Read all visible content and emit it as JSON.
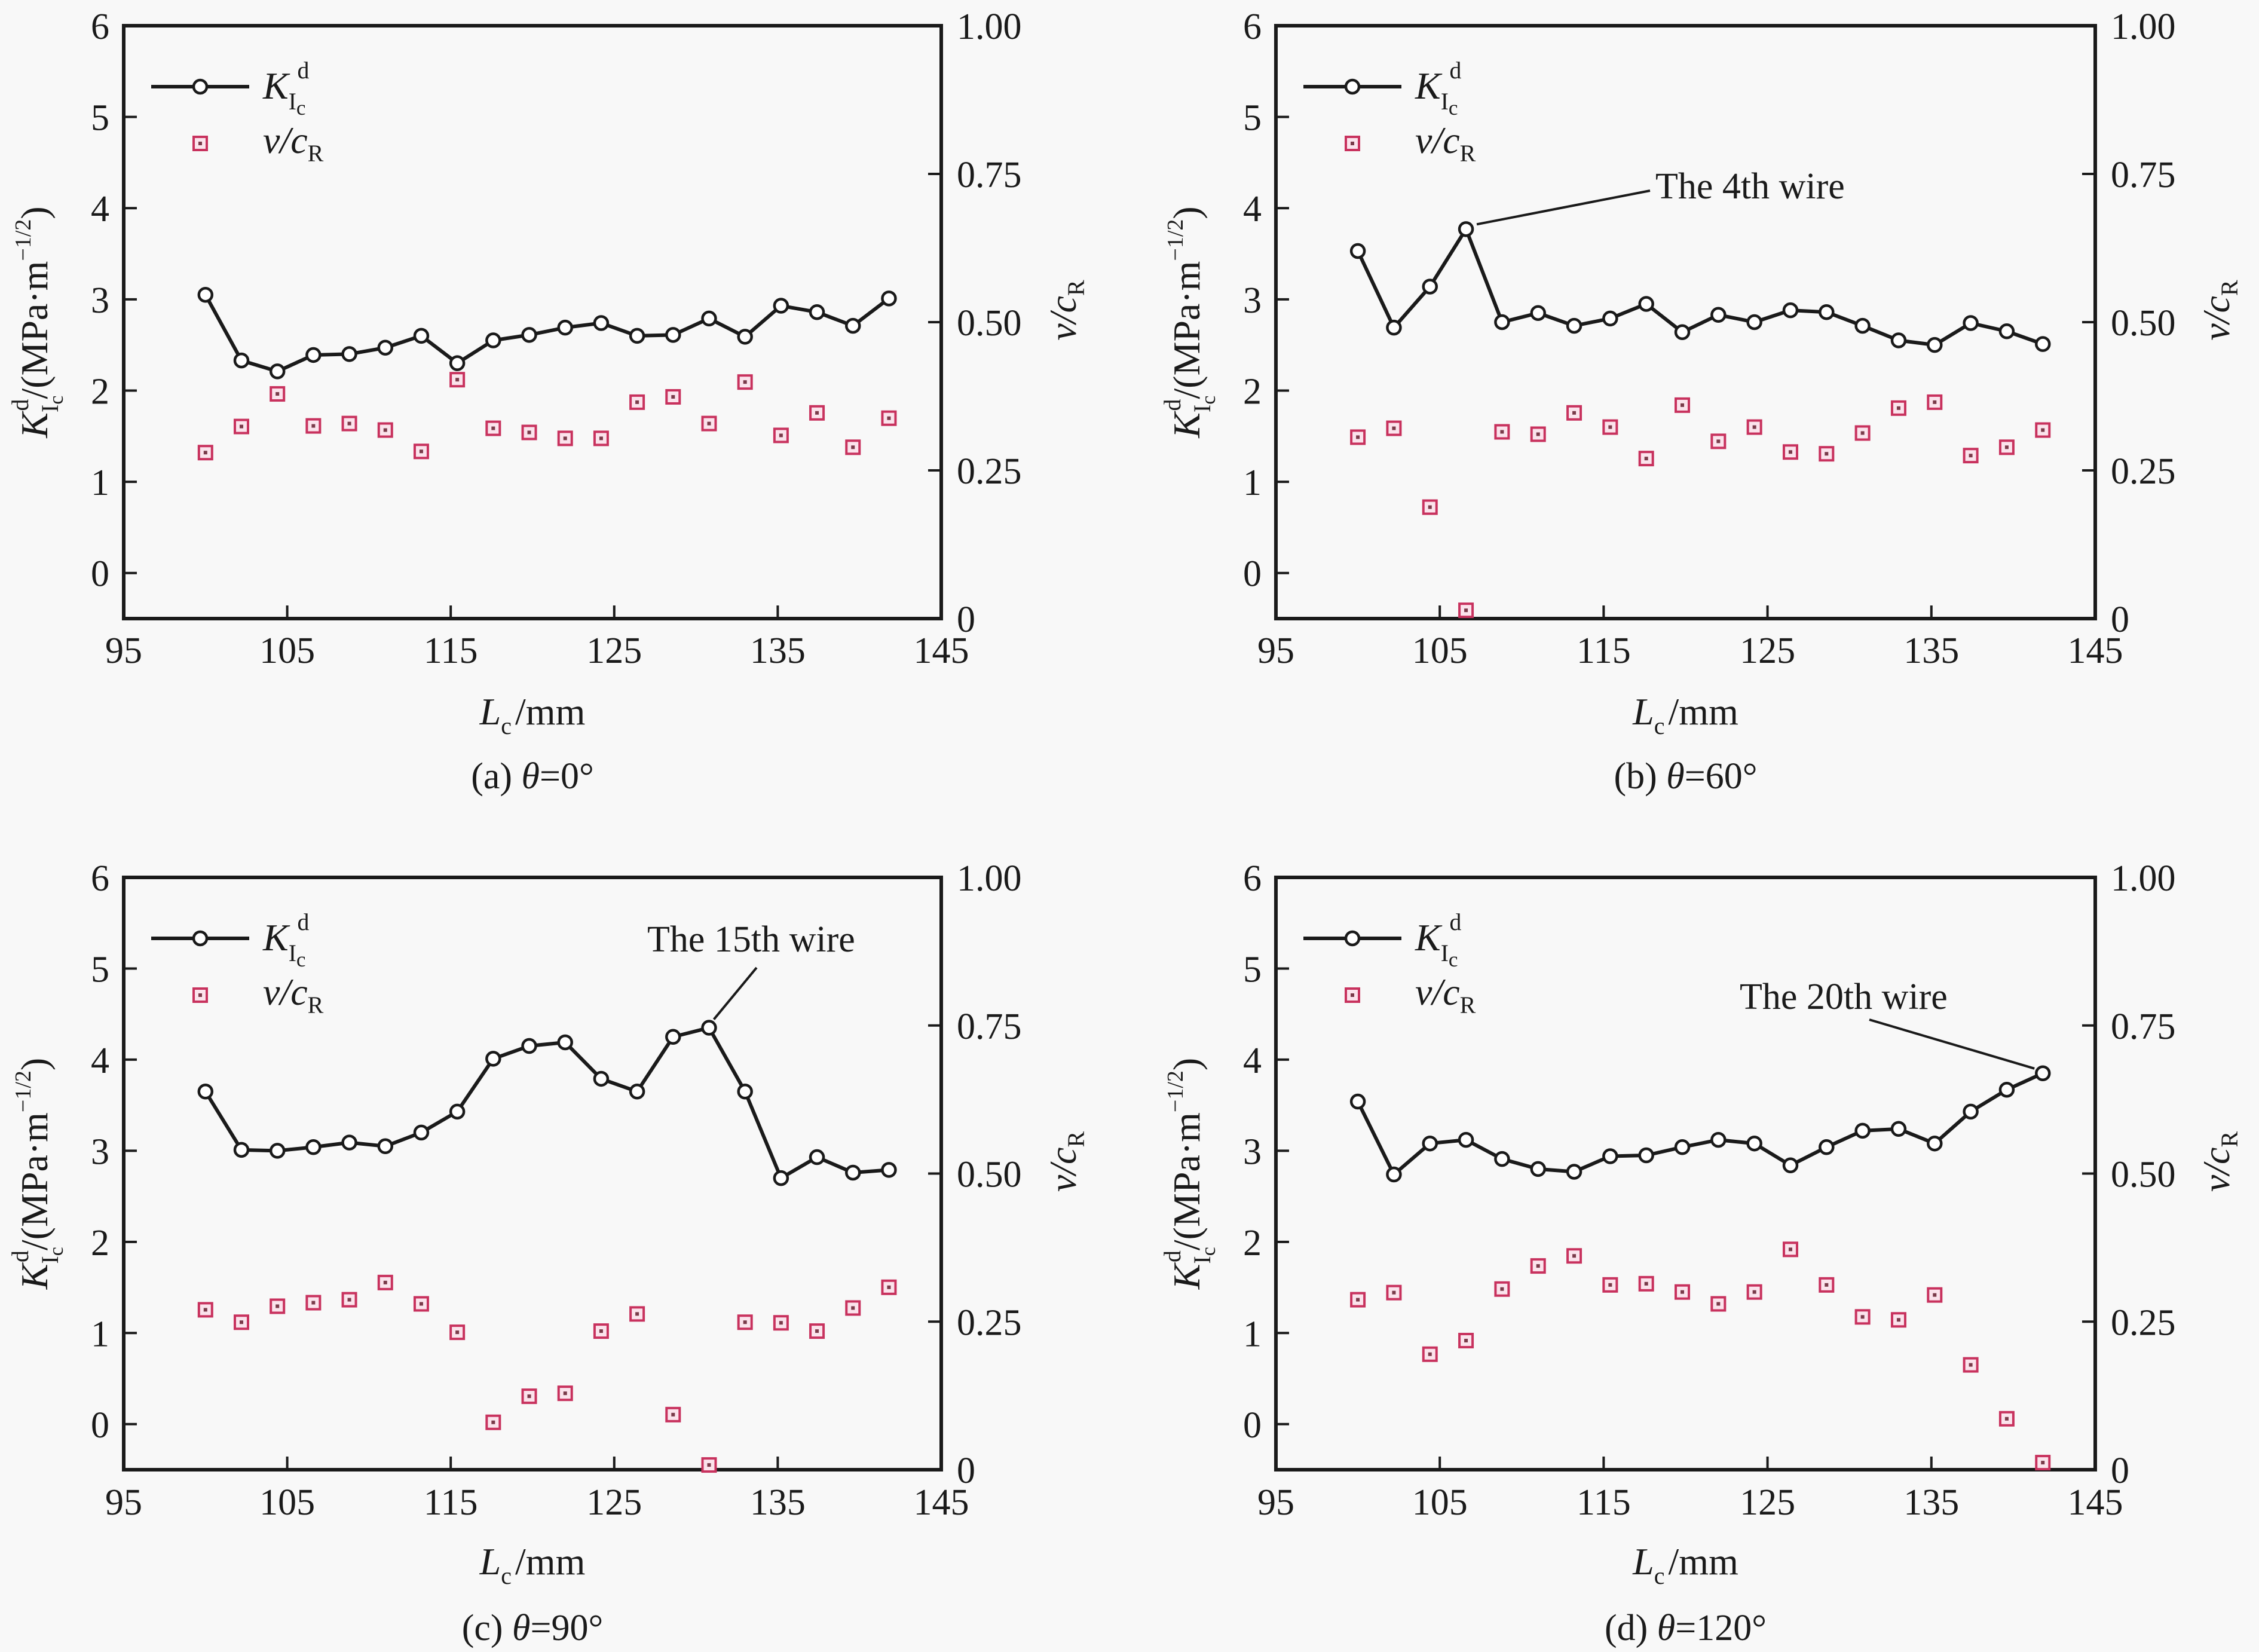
{
  "figure": {
    "colors": {
      "k_series": "#1a1a1a",
      "v_series": "#c8325e",
      "background": "#f8f8f8"
    }
  },
  "chart_data": [
    {
      "type": "line",
      "panel": "a",
      "caption": {
        "prefix": "(a) ",
        "theta": "θ",
        "suffix": "=0°"
      },
      "xlabel": {
        "main": "L",
        "sub": "c",
        "unit": "/mm"
      },
      "ylabel_left": {
        "main": "K",
        "sub": "I",
        "subsub": "c",
        "sup": "d",
        "unit": "/(MPa·m",
        "unit_sup": "−1/2",
        "close": ")"
      },
      "ylabel_right": {
        "main": "v/c",
        "sub": "R"
      },
      "xlim": [
        95,
        145
      ],
      "xticks": [
        "95",
        "105",
        "115",
        "125",
        "135",
        "145"
      ],
      "ylim_left": [
        -0.5,
        6
      ],
      "yticks_left": [
        "0",
        "1",
        "2",
        "3",
        "4",
        "5",
        "6"
      ],
      "ylim_right": [
        0,
        1.0
      ],
      "yticks_right": [
        "0",
        "0.25",
        "0.50",
        "0.75",
        "1.00"
      ],
      "legend": {
        "placement": "top-left",
        "entries": [
          {
            "name": "K_Ic^d",
            "marker": "circle-line"
          },
          {
            "name": "v/c_R",
            "marker": "square"
          }
        ]
      },
      "x": [
        100.0,
        102.2,
        104.4,
        106.6,
        108.8,
        111.0,
        113.2,
        115.4,
        117.6,
        119.8,
        122.0,
        124.2,
        126.4,
        128.6,
        130.8,
        133.0,
        135.2,
        137.4,
        139.6,
        141.8
      ],
      "series": [
        {
          "name": "K_Ic^d",
          "axis": "left",
          "values": [
            3.05,
            2.33,
            2.21,
            2.39,
            2.4,
            2.47,
            2.6,
            2.3,
            2.55,
            2.61,
            2.69,
            2.74,
            2.6,
            2.61,
            2.79,
            2.59,
            2.93,
            2.86,
            2.71,
            3.01
          ]
        },
        {
          "name": "v/c_R",
          "axis": "right",
          "values": [
            0.28,
            0.324,
            0.379,
            0.325,
            0.329,
            0.318,
            0.282,
            0.403,
            0.321,
            0.314,
            0.304,
            0.304,
            0.365,
            0.374,
            0.329,
            0.399,
            0.309,
            0.347,
            0.289,
            0.338
          ]
        }
      ],
      "annotation": null
    },
    {
      "type": "line",
      "panel": "b",
      "caption": {
        "prefix": "(b) ",
        "theta": "θ",
        "suffix": "=60°"
      },
      "xlabel": {
        "main": "L",
        "sub": "c",
        "unit": "/mm"
      },
      "ylabel_left": {
        "main": "K",
        "sub": "I",
        "subsub": "c",
        "sup": "d",
        "unit": "/(MPa·m",
        "unit_sup": "−1/2",
        "close": ")"
      },
      "ylabel_right": {
        "main": "v/c",
        "sub": "R"
      },
      "xlim": [
        95,
        145
      ],
      "xticks": [
        "95",
        "105",
        "115",
        "125",
        "135",
        "145"
      ],
      "ylim_left": [
        -0.5,
        6
      ],
      "yticks_left": [
        "0",
        "1",
        "2",
        "3",
        "4",
        "5",
        "6"
      ],
      "ylim_right": [
        0,
        1.0
      ],
      "yticks_right": [
        "0",
        "0.25",
        "0.50",
        "0.75",
        "1.00"
      ],
      "legend": {
        "placement": "top-left",
        "entries": [
          {
            "name": "K_Ic^d",
            "marker": "circle-line"
          },
          {
            "name": "v/c_R",
            "marker": "square"
          }
        ]
      },
      "x": [
        100.0,
        102.2,
        104.4,
        106.6,
        108.8,
        111.0,
        113.2,
        115.4,
        117.6,
        119.8,
        122.0,
        124.2,
        126.4,
        128.6,
        130.8,
        133.0,
        135.2,
        137.4,
        139.6,
        141.8
      ],
      "series": [
        {
          "name": "K_Ic^d",
          "axis": "left",
          "values": [
            3.53,
            2.69,
            3.14,
            3.77,
            2.75,
            2.85,
            2.71,
            2.79,
            2.95,
            2.64,
            2.83,
            2.75,
            2.88,
            2.86,
            2.71,
            2.55,
            2.5,
            2.74,
            2.65,
            2.51
          ]
        },
        {
          "name": "v/c_R",
          "axis": "right",
          "values": [
            0.306,
            0.321,
            0.188,
            0.014,
            0.315,
            0.311,
            0.347,
            0.323,
            0.27,
            0.36,
            0.299,
            0.323,
            0.281,
            0.278,
            0.313,
            0.355,
            0.365,
            0.275,
            0.289,
            0.318
          ]
        }
      ],
      "annotation": {
        "text": "The 4th wire",
        "point_index": 3
      }
    },
    {
      "type": "line",
      "panel": "c",
      "caption": {
        "prefix": "(c) ",
        "theta": "θ",
        "suffix": "=90°"
      },
      "xlabel": {
        "main": "L",
        "sub": "c",
        "unit": "/mm"
      },
      "ylabel_left": {
        "main": "K",
        "sub": "I",
        "subsub": "c",
        "sup": "d",
        "unit": "/(MPa·m",
        "unit_sup": "−1/2",
        "close": ")"
      },
      "ylabel_right": {
        "main": "v/c",
        "sub": "R"
      },
      "xlim": [
        95,
        145
      ],
      "xticks": [
        "95",
        "105",
        "115",
        "125",
        "135",
        "145"
      ],
      "ylim_left": [
        -0.5,
        6
      ],
      "yticks_left": [
        "0",
        "1",
        "2",
        "3",
        "4",
        "5",
        "6"
      ],
      "ylim_right": [
        0,
        1.0
      ],
      "yticks_right": [
        "0",
        "0.25",
        "0.50",
        "0.75",
        "1.00"
      ],
      "legend": {
        "placement": "top-left",
        "entries": [
          {
            "name": "K_Ic^d",
            "marker": "circle-line"
          },
          {
            "name": "v/c_R",
            "marker": "square"
          }
        ]
      },
      "x": [
        100.0,
        102.2,
        104.4,
        106.6,
        108.8,
        111.0,
        113.2,
        115.4,
        117.6,
        119.8,
        122.0,
        124.2,
        126.4,
        128.6,
        130.8,
        133.0,
        135.2,
        137.4,
        139.6,
        141.8
      ],
      "series": [
        {
          "name": "K_Ic^d",
          "axis": "left",
          "values": [
            3.65,
            3.01,
            3.0,
            3.04,
            3.09,
            3.05,
            3.2,
            3.43,
            4.01,
            4.15,
            4.19,
            3.79,
            3.65,
            4.25,
            4.35,
            3.65,
            2.7,
            2.93,
            2.76,
            2.79
          ]
        },
        {
          "name": "v/c_R",
          "axis": "right",
          "values": [
            0.27,
            0.249,
            0.276,
            0.282,
            0.287,
            0.316,
            0.28,
            0.232,
            0.08,
            0.124,
            0.129,
            0.234,
            0.263,
            0.093,
            0.008,
            0.249,
            0.248,
            0.234,
            0.273,
            0.308
          ]
        }
      ],
      "annotation": {
        "text": "The 15th wire",
        "point_index": 14
      }
    },
    {
      "type": "line",
      "panel": "d",
      "caption": {
        "prefix": "(d) ",
        "theta": "θ",
        "suffix": "=120°"
      },
      "xlabel": {
        "main": "L",
        "sub": "c",
        "unit": "/mm"
      },
      "ylabel_left": {
        "main": "K",
        "sub": "I",
        "subsub": "c",
        "sup": "d",
        "unit": "/(MPa·m",
        "unit_sup": "−1/2",
        "close": ")"
      },
      "ylabel_right": {
        "main": "v/c",
        "sub": "R"
      },
      "xlim": [
        95,
        145
      ],
      "xticks": [
        "95",
        "105",
        "115",
        "125",
        "135",
        "145"
      ],
      "ylim_left": [
        -0.5,
        6
      ],
      "yticks_left": [
        "0",
        "1",
        "2",
        "3",
        "4",
        "5",
        "6"
      ],
      "ylim_right": [
        0,
        1.0
      ],
      "yticks_right": [
        "0",
        "0.25",
        "0.50",
        "0.75",
        "1.00"
      ],
      "legend": {
        "placement": "top-left",
        "entries": [
          {
            "name": "K_Ic^d",
            "marker": "circle-line"
          },
          {
            "name": "v/c_R",
            "marker": "square"
          }
        ]
      },
      "x": [
        100.0,
        102.2,
        104.4,
        106.6,
        108.8,
        111.0,
        113.2,
        115.4,
        117.6,
        119.8,
        122.0,
        124.2,
        126.4,
        128.6,
        130.8,
        133.0,
        135.2,
        137.4,
        139.6,
        141.8
      ],
      "series": [
        {
          "name": "K_Ic^d",
          "axis": "left",
          "values": [
            3.54,
            2.74,
            3.08,
            3.12,
            2.91,
            2.8,
            2.77,
            2.94,
            2.95,
            3.04,
            3.12,
            3.08,
            2.84,
            3.04,
            3.22,
            3.24,
            3.08,
            3.43,
            3.67,
            3.85
          ]
        },
        {
          "name": "v/c_R",
          "axis": "right",
          "values": [
            0.287,
            0.299,
            0.195,
            0.218,
            0.305,
            0.344,
            0.361,
            0.312,
            0.314,
            0.3,
            0.28,
            0.3,
            0.372,
            0.312,
            0.258,
            0.253,
            0.295,
            0.177,
            0.086,
            0.012
          ]
        }
      ],
      "annotation": {
        "text": "The 20th wire",
        "point_index": 19
      }
    }
  ]
}
